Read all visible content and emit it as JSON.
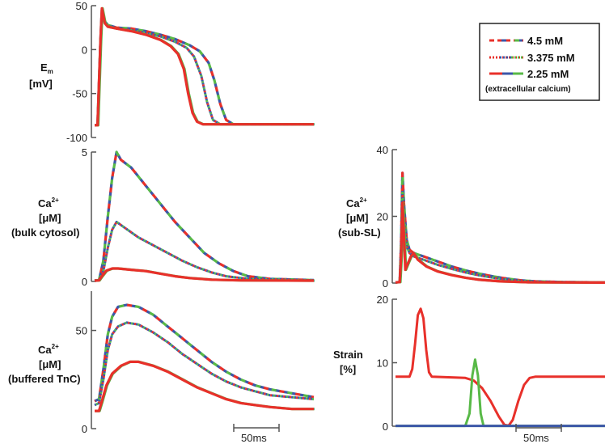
{
  "colors": {
    "red": "#e8302a",
    "green": "#58b947",
    "blue": "#3c57a8",
    "axis": "#555555"
  },
  "legend": {
    "entries": [
      {
        "label": "4.5 mM",
        "style": "dashed"
      },
      {
        "label": "3.375 mM",
        "style": "dotted"
      },
      {
        "label": "2.25 mM",
        "style": "solid"
      }
    ],
    "note": "(extracellular calcium)"
  },
  "scale_bar": {
    "label": "50ms",
    "duration_ms": 50
  },
  "chart_data": [
    {
      "id": "em",
      "type": "line",
      "ylabel": [
        "E",
        "m",
        "[mV]"
      ],
      "ylim": [
        -100,
        50
      ],
      "yticks": [
        "50",
        "0",
        "-50",
        "-100"
      ],
      "ytick_values": [
        50,
        0,
        -50,
        -100
      ],
      "x_ms": [
        0,
        150
      ],
      "series": [
        {
          "style": "dashed",
          "points": [
            [
              0,
              -86
            ],
            [
              2,
              -86
            ],
            [
              4,
              10
            ],
            [
              5,
              45
            ],
            [
              7,
              32
            ],
            [
              9,
              28
            ],
            [
              15,
              25
            ],
            [
              25,
              24
            ],
            [
              35,
              21
            ],
            [
              45,
              17
            ],
            [
              55,
              12
            ],
            [
              65,
              5
            ],
            [
              72,
              -2
            ],
            [
              78,
              -15
            ],
            [
              82,
              -35
            ],
            [
              86,
              -62
            ],
            [
              90,
              -80
            ],
            [
              95,
              -85
            ],
            [
              150,
              -85
            ]
          ]
        },
        {
          "style": "dotted",
          "points": [
            [
              0,
              -86
            ],
            [
              2,
              -86
            ],
            [
              4,
              10
            ],
            [
              5,
              44
            ],
            [
              7,
              30
            ],
            [
              9,
              27
            ],
            [
              15,
              24
            ],
            [
              25,
              22
            ],
            [
              35,
              19
            ],
            [
              45,
              15
            ],
            [
              55,
              9
            ],
            [
              63,
              2
            ],
            [
              68,
              -8
            ],
            [
              73,
              -30
            ],
            [
              77,
              -60
            ],
            [
              81,
              -80
            ],
            [
              86,
              -85
            ],
            [
              150,
              -85
            ]
          ]
        },
        {
          "style": "solid",
          "points": [
            [
              0,
              -86
            ],
            [
              2,
              -86
            ],
            [
              4,
              10
            ],
            [
              5,
              47
            ],
            [
              7,
              30
            ],
            [
              9,
              26
            ],
            [
              15,
              24
            ],
            [
              25,
              21
            ],
            [
              35,
              17
            ],
            [
              45,
              11
            ],
            [
              52,
              4
            ],
            [
              57,
              -5
            ],
            [
              61,
              -22
            ],
            [
              64,
              -50
            ],
            [
              67,
              -72
            ],
            [
              70,
              -82
            ],
            [
              74,
              -85
            ],
            [
              150,
              -85
            ]
          ]
        }
      ]
    },
    {
      "id": "ca-bulk",
      "type": "line",
      "ylabel": [
        "Ca",
        "2+",
        "[μM]",
        "(bulk cytosol)"
      ],
      "ylim": [
        0,
        5
      ],
      "yticks": [
        "5",
        "0"
      ],
      "ytick_values": [
        5,
        0
      ],
      "x_ms": [
        0,
        150
      ],
      "series": [
        {
          "style": "dashed",
          "points": [
            [
              0,
              0.03
            ],
            [
              3,
              0.05
            ],
            [
              6,
              0.8
            ],
            [
              9,
              2.5
            ],
            [
              12,
              4.0
            ],
            [
              15,
              5.0
            ],
            [
              18,
              4.7
            ],
            [
              25,
              4.4
            ],
            [
              35,
              3.7
            ],
            [
              45,
              3.0
            ],
            [
              55,
              2.3
            ],
            [
              65,
              1.7
            ],
            [
              75,
              1.1
            ],
            [
              85,
              0.7
            ],
            [
              95,
              0.4
            ],
            [
              105,
              0.2
            ],
            [
              120,
              0.1
            ],
            [
              150,
              0.05
            ]
          ]
        },
        {
          "style": "dotted",
          "points": [
            [
              0,
              0.03
            ],
            [
              3,
              0.05
            ],
            [
              6,
              0.4
            ],
            [
              9,
              1.3
            ],
            [
              12,
              2.0
            ],
            [
              15,
              2.3
            ],
            [
              20,
              2.1
            ],
            [
              30,
              1.7
            ],
            [
              40,
              1.4
            ],
            [
              50,
              1.1
            ],
            [
              60,
              0.8
            ],
            [
              70,
              0.55
            ],
            [
              80,
              0.35
            ],
            [
              90,
              0.2
            ],
            [
              105,
              0.1
            ],
            [
              150,
              0.04
            ]
          ]
        },
        {
          "style": "solid",
          "points": [
            [
              0,
              0.03
            ],
            [
              3,
              0.04
            ],
            [
              5,
              0.2
            ],
            [
              8,
              0.42
            ],
            [
              12,
              0.5
            ],
            [
              16,
              0.5
            ],
            [
              25,
              0.45
            ],
            [
              35,
              0.4
            ],
            [
              45,
              0.3
            ],
            [
              55,
              0.2
            ],
            [
              65,
              0.13
            ],
            [
              80,
              0.07
            ],
            [
              100,
              0.04
            ],
            [
              150,
              0.03
            ]
          ]
        }
      ]
    },
    {
      "id": "ca-tnc",
      "type": "line",
      "ylabel": [
        "Ca",
        "2+",
        "[μM]",
        "(buffered TnC)"
      ],
      "ylim": [
        0,
        70
      ],
      "yticks": [
        "50",
        "0"
      ],
      "ytick_values": [
        50,
        0
      ],
      "x_ms": [
        0,
        150
      ],
      "series": [
        {
          "style": "dashed",
          "points": [
            [
              0,
              14
            ],
            [
              3,
              15
            ],
            [
              6,
              30
            ],
            [
              9,
              48
            ],
            [
              12,
              57
            ],
            [
              16,
              62
            ],
            [
              22,
              63
            ],
            [
              30,
              62
            ],
            [
              40,
              58
            ],
            [
              50,
              52
            ],
            [
              60,
              46
            ],
            [
              70,
              40
            ],
            [
              80,
              34
            ],
            [
              90,
              29
            ],
            [
              100,
              25
            ],
            [
              110,
              22
            ],
            [
              120,
              20
            ],
            [
              135,
              18
            ],
            [
              150,
              16
            ]
          ]
        },
        {
          "style": "dotted",
          "points": [
            [
              0,
              12
            ],
            [
              3,
              13
            ],
            [
              6,
              25
            ],
            [
              9,
              40
            ],
            [
              12,
              48
            ],
            [
              16,
              52
            ],
            [
              22,
              54
            ],
            [
              30,
              53
            ],
            [
              40,
              49
            ],
            [
              50,
              44
            ],
            [
              60,
              38
            ],
            [
              70,
              33
            ],
            [
              80,
              28
            ],
            [
              90,
              24
            ],
            [
              100,
              21
            ],
            [
              110,
              19
            ],
            [
              120,
              17
            ],
            [
              135,
              16
            ],
            [
              150,
              15
            ]
          ]
        },
        {
          "style": "solid",
          "points": [
            [
              0,
              9
            ],
            [
              3,
              9
            ],
            [
              5,
              14
            ],
            [
              8,
              22
            ],
            [
              12,
              28
            ],
            [
              18,
              32
            ],
            [
              24,
              34
            ],
            [
              30,
              34
            ],
            [
              40,
              32
            ],
            [
              50,
              29
            ],
            [
              60,
              25
            ],
            [
              70,
              21
            ],
            [
              80,
              18
            ],
            [
              90,
              15
            ],
            [
              100,
              13
            ],
            [
              110,
              12
            ],
            [
              120,
              11
            ],
            [
              135,
              10
            ],
            [
              150,
              10
            ]
          ]
        }
      ]
    },
    {
      "id": "ca-subsl",
      "type": "line",
      "ylabel": [
        "Ca",
        "2+",
        "[μM]",
        "(sub-SL)"
      ],
      "ylim": [
        0,
        40
      ],
      "yticks": [
        "40",
        "20",
        "0"
      ],
      "ytick_values": [
        40,
        20,
        0
      ],
      "x_ms": [
        0,
        150
      ],
      "series": [
        {
          "style": "dashed",
          "points": [
            [
              0,
              0.2
            ],
            [
              3,
              0.3
            ],
            [
              4,
              12
            ],
            [
              5,
              33
            ],
            [
              6,
              24
            ],
            [
              8,
              13
            ],
            [
              10,
              10
            ],
            [
              13,
              9
            ],
            [
              20,
              8
            ],
            [
              30,
              6.5
            ],
            [
              40,
              5
            ],
            [
              50,
              3.8
            ],
            [
              60,
              2.8
            ],
            [
              70,
              2.0
            ],
            [
              80,
              1.3
            ],
            [
              90,
              0.8
            ],
            [
              100,
              0.5
            ],
            [
              120,
              0.3
            ],
            [
              150,
              0.2
            ]
          ]
        },
        {
          "style": "dotted",
          "points": [
            [
              0,
              0.2
            ],
            [
              3,
              0.3
            ],
            [
              4,
              10
            ],
            [
              5,
              28
            ],
            [
              6,
              20
            ],
            [
              8,
              11
            ],
            [
              10,
              9
            ],
            [
              13,
              8
            ],
            [
              20,
              7
            ],
            [
              30,
              5.5
            ],
            [
              40,
              4.3
            ],
            [
              50,
              3.2
            ],
            [
              60,
              2.3
            ],
            [
              70,
              1.6
            ],
            [
              80,
              1.0
            ],
            [
              90,
              0.6
            ],
            [
              105,
              0.35
            ],
            [
              150,
              0.2
            ]
          ]
        },
        {
          "style": "solid",
          "points": [
            [
              0,
              0.2
            ],
            [
              3,
              0.3
            ],
            [
              4,
              8
            ],
            [
              5,
              24
            ],
            [
              6,
              14
            ],
            [
              7,
              4
            ],
            [
              9,
              6
            ],
            [
              11,
              8
            ],
            [
              13,
              9
            ],
            [
              16,
              7
            ],
            [
              22,
              5
            ],
            [
              30,
              3.5
            ],
            [
              40,
              2.4
            ],
            [
              50,
              1.6
            ],
            [
              60,
              1.0
            ],
            [
              75,
              0.5
            ],
            [
              95,
              0.25
            ],
            [
              150,
              0.15
            ]
          ]
        }
      ]
    },
    {
      "id": "strain",
      "type": "line",
      "ylabel": [
        "Strain",
        "[%]"
      ],
      "ylim": [
        0,
        20
      ],
      "yticks": [
        "20",
        "10",
        "0"
      ],
      "ytick_values": [
        20,
        10,
        0
      ],
      "x_ms": [
        0,
        150
      ],
      "series": [
        {
          "style": "solid-red",
          "points": [
            [
              0,
              7.8
            ],
            [
              10,
              7.8
            ],
            [
              12,
              9
            ],
            [
              14,
              13
            ],
            [
              16,
              17.5
            ],
            [
              18,
              18.5
            ],
            [
              20,
              17
            ],
            [
              22,
              12
            ],
            [
              24,
              8.5
            ],
            [
              26,
              7.8
            ],
            [
              40,
              7.7
            ],
            [
              50,
              7.6
            ],
            [
              56,
              7.2
            ],
            [
              62,
              6
            ],
            [
              68,
              4
            ],
            [
              74,
              1.5
            ],
            [
              78,
              0.2
            ],
            [
              81,
              0.1
            ],
            [
              84,
              1
            ],
            [
              88,
              4
            ],
            [
              92,
              6.5
            ],
            [
              96,
              7.6
            ],
            [
              100,
              7.8
            ],
            [
              150,
              7.8
            ]
          ]
        },
        {
          "style": "solid-green",
          "points": [
            [
              0,
              0.05
            ],
            [
              50,
              0.05
            ],
            [
              53,
              2
            ],
            [
              55,
              8
            ],
            [
              57,
              10.5
            ],
            [
              59,
              8
            ],
            [
              61,
              2
            ],
            [
              63,
              0.05
            ],
            [
              150,
              0.05
            ]
          ]
        },
        {
          "style": "solid-blue",
          "points": [
            [
              0,
              0.05
            ],
            [
              150,
              0.05
            ]
          ]
        }
      ]
    }
  ]
}
